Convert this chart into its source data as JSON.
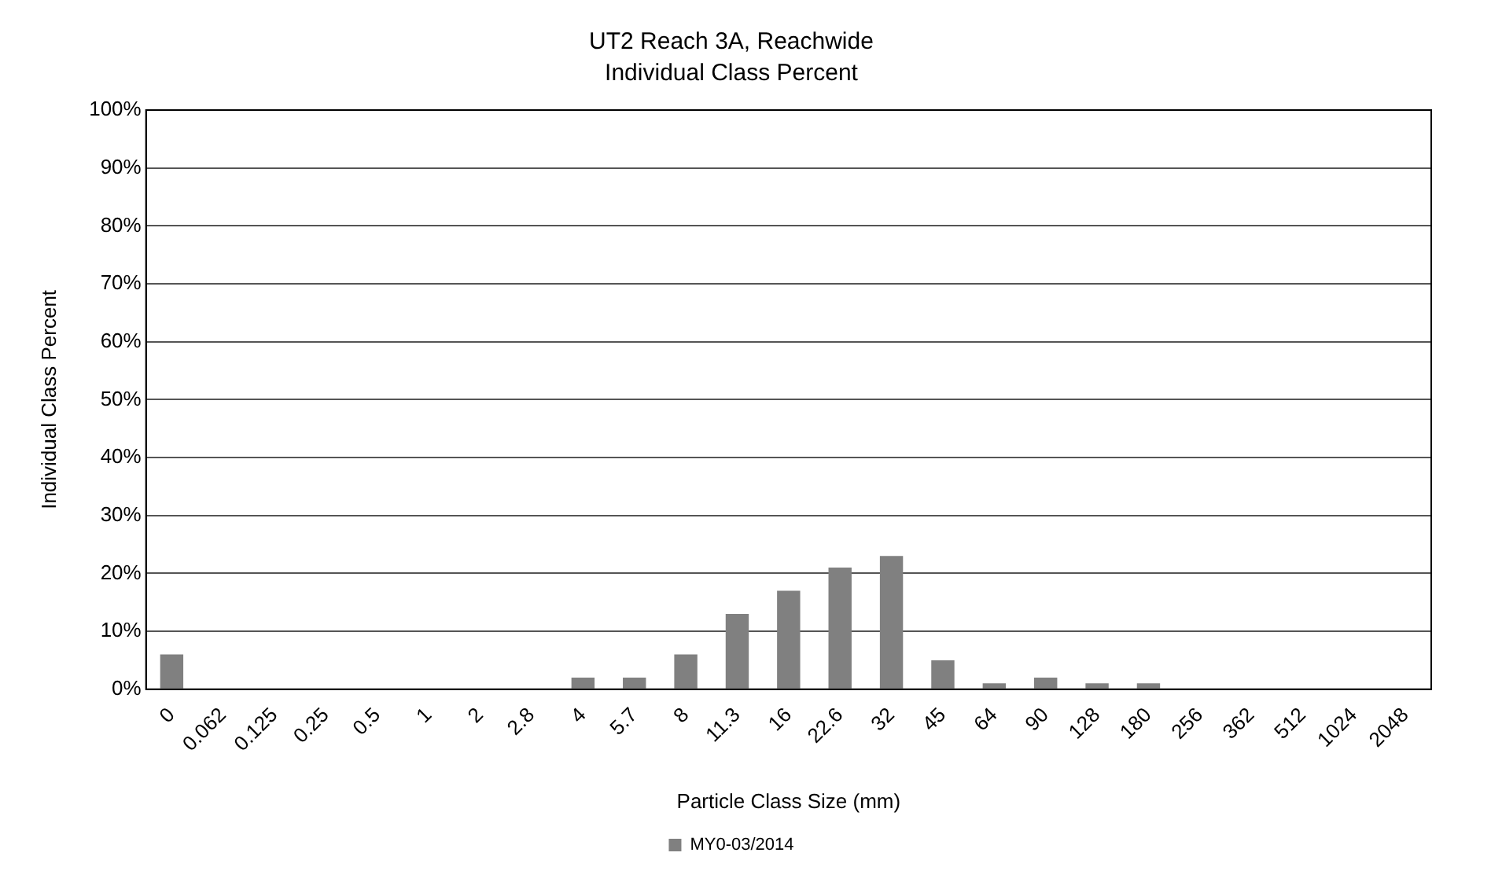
{
  "chart_data": {
    "type": "bar",
    "title": "UT2 Reach 3A, Reachwide",
    "subtitle": "Individual Class Percent",
    "xlabel": "Particle Class Size (mm)",
    "ylabel": "Individual Class Percent",
    "categories": [
      "0",
      "0.062",
      "0.125",
      "0.25",
      "0.5",
      "1",
      "2",
      "2.8",
      "4",
      "5.7",
      "8",
      "11.3",
      "16",
      "22.6",
      "32",
      "45",
      "64",
      "90",
      "128",
      "180",
      "256",
      "362",
      "512",
      "1024",
      "2048"
    ],
    "series": [
      {
        "name": "MY0-03/2014",
        "color": "#808080",
        "values": [
          6,
          0,
          0,
          0,
          0,
          0,
          0,
          0,
          2,
          2,
          6,
          13,
          17,
          21,
          23,
          5,
          1,
          2,
          1,
          1,
          0,
          0,
          0,
          0,
          0
        ]
      }
    ],
    "ylim": [
      0,
      100
    ],
    "yticks": [
      {
        "value": 0,
        "label": "0%"
      },
      {
        "value": 10,
        "label": "10%"
      },
      {
        "value": 20,
        "label": "20%"
      },
      {
        "value": 30,
        "label": "30%"
      },
      {
        "value": 40,
        "label": "40%"
      },
      {
        "value": 50,
        "label": "50%"
      },
      {
        "value": 60,
        "label": "60%"
      },
      {
        "value": 70,
        "label": "70%"
      },
      {
        "value": 80,
        "label": "80%"
      },
      {
        "value": 90,
        "label": "90%"
      },
      {
        "value": 100,
        "label": "100%"
      }
    ],
    "grid": "y",
    "legend": "bottom"
  }
}
